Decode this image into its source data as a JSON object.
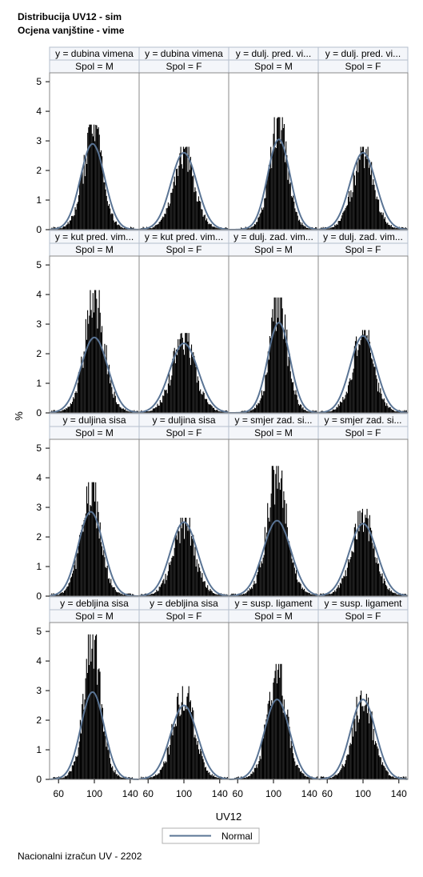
{
  "titles": [
    "Distribucija UV12 - sim",
    "Ocjena vanjštine - vime"
  ],
  "footnote": "Nacionalni izračun UV - 2202",
  "chart_data": {
    "type": "bar",
    "subtype": "histogram panel grid with normal density overlay",
    "xlabel": "UV12",
    "ylabel": "%",
    "xlim": [
      50,
      150
    ],
    "ylim": [
      0,
      5.3
    ],
    "xticks": [
      60,
      100,
      140
    ],
    "yticks": [
      0,
      1,
      2,
      3,
      4,
      5
    ],
    "grid": false,
    "legend": {
      "position": "bottom-center",
      "entries": [
        "Normal"
      ]
    },
    "colors": {
      "bars": "#000000",
      "normal_curve": "#5a7494",
      "header_bg": "#f4f6fa",
      "header_border": "#b5bfcc",
      "frame": "#8a8a8a"
    },
    "panels": [
      {
        "row_label": "y = dubina vimena",
        "col_label": "Spol = M",
        "mean": 98,
        "sd": 13.5,
        "peak": 3.55,
        "normal_peak": 2.9
      },
      {
        "row_label": "y = dubina vimena",
        "col_label": "Spol = F",
        "mean": 100,
        "sd": 14.5,
        "peak": 2.8,
        "normal_peak": 2.6
      },
      {
        "row_label": "y = dulj. pred. vi...",
        "col_label": "Spol = M",
        "mean": 106,
        "sd": 12.5,
        "peak": 3.8,
        "normal_peak": 3.05
      },
      {
        "row_label": "y = dulj. pred. vi...",
        "col_label": "Spol = F",
        "mean": 100,
        "sd": 14.5,
        "peak": 2.8,
        "normal_peak": 2.6
      },
      {
        "row_label": "y = kut pred. vim...",
        "col_label": "Spol = M",
        "mean": 100,
        "sd": 15,
        "peak": 4.15,
        "normal_peak": 2.55
      },
      {
        "row_label": "y = kut pred. vim...",
        "col_label": "Spol = F",
        "mean": 100,
        "sd": 16,
        "peak": 2.7,
        "normal_peak": 2.35
      },
      {
        "row_label": "y = dulj. zad. vim...",
        "col_label": "Spol = M",
        "mean": 106,
        "sd": 12.5,
        "peak": 3.9,
        "normal_peak": 3.05
      },
      {
        "row_label": "y = dulj. zad. vim...",
        "col_label": "Spol = F",
        "mean": 100,
        "sd": 14.5,
        "peak": 2.8,
        "normal_peak": 2.6
      },
      {
        "row_label": "y = duljina sisa",
        "col_label": "Spol = M",
        "mean": 96,
        "sd": 14,
        "peak": 3.85,
        "normal_peak": 2.85
      },
      {
        "row_label": "y = duljina sisa",
        "col_label": "Spol = F",
        "mean": 100,
        "sd": 15,
        "peak": 2.65,
        "normal_peak": 2.5
      },
      {
        "row_label": "y = smjer zad. si...",
        "col_label": "Spol = M",
        "mean": 104,
        "sd": 15.5,
        "peak": 4.4,
        "normal_peak": 2.55
      },
      {
        "row_label": "y = smjer zad. si...",
        "col_label": "Spol = F",
        "mean": 100,
        "sd": 15.5,
        "peak": 2.95,
        "normal_peak": 2.45
      },
      {
        "row_label": "y = debljina sisa",
        "col_label": "Spol = M",
        "mean": 98,
        "sd": 13,
        "peak": 4.9,
        "normal_peak": 2.95
      },
      {
        "row_label": "y = debljina sisa",
        "col_label": "Spol = F",
        "mean": 100,
        "sd": 15,
        "peak": 3.15,
        "normal_peak": 2.5
      },
      {
        "row_label": "y = susp. ligament",
        "col_label": "Spol = M",
        "mean": 104,
        "sd": 14,
        "peak": 3.9,
        "normal_peak": 2.7
      },
      {
        "row_label": "y = susp. ligament",
        "col_label": "Spol = F",
        "mean": 100,
        "sd": 14,
        "peak": 3.0,
        "normal_peak": 2.7
      }
    ]
  }
}
